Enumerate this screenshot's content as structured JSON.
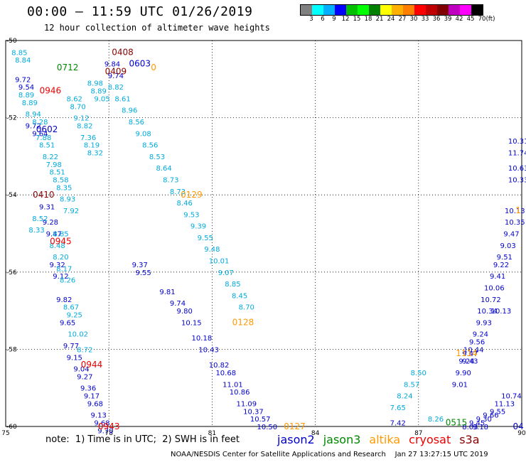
{
  "header": {
    "title": "00:00 – 11:59 UTC 01/26/2019",
    "subtitle": "12 hour collection of altimeter wave heights"
  },
  "color_scale": {
    "colors": [
      "#808080",
      "#00ffff",
      "#00b0ff",
      "#0000ff",
      "#00c000",
      "#00ff00",
      "#008000",
      "#ffff00",
      "#ffb000",
      "#ff8000",
      "#ff0000",
      "#c00000",
      "#800000",
      "#c000c0",
      "#ff00ff",
      "#000000"
    ],
    "labels": [
      "3",
      "6",
      "9",
      "12",
      "15",
      "18",
      "21",
      "24",
      "27",
      "30",
      "33",
      "36",
      "39",
      "42",
      "45",
      "70",
      "(ft)"
    ]
  },
  "footer": {
    "note": "note:  1) Time is in UTC;  2) SWH is in feet",
    "credit": "NOAA/NESDIS Center for Satellite Applications and Research    Jan 27 13:27:15 UTC 2019",
    "satellites": [
      {
        "name": "jason2",
        "color": "#0000cc"
      },
      {
        "name": "jason3",
        "color": "#008800"
      },
      {
        "name": "altika",
        "color": "#ff9900"
      },
      {
        "name": "cryosat",
        "color": "#ee0000"
      },
      {
        "name": "s3a",
        "color": "#880000"
      }
    ]
  },
  "chart_data": {
    "type": "scatter",
    "title": "00:00 – 11:59 UTC 01/26/2019",
    "subtitle": "12 hour collection of altimeter wave heights",
    "xlabel": "",
    "ylabel": "",
    "xlim": [
      75,
      90
    ],
    "ylim": [
      -60,
      -50
    ],
    "grid": true,
    "x_ticks": [
      "75",
      "78",
      "81",
      "84",
      "87",
      "90"
    ],
    "y_ticks": [
      "-50",
      "-52",
      "-54",
      "-56",
      "-58",
      "-60"
    ],
    "series": [
      {
        "name": "jason2",
        "color": "#0000cc",
        "points": [
          [
            78.9,
            -55.8,
            "9.37"
          ],
          [
            79.0,
            -56.0,
            "9.55"
          ],
          [
            79.7,
            -56.5,
            "9.81"
          ],
          [
            80.0,
            -56.8,
            "9.74"
          ],
          [
            80.2,
            -57.0,
            "9.80"
          ],
          [
            80.4,
            -57.3,
            "10.15"
          ],
          [
            80.7,
            -57.7,
            "10.18"
          ],
          [
            80.9,
            -58.0,
            "10.43"
          ],
          [
            81.2,
            -58.4,
            "10.82"
          ],
          [
            81.4,
            -58.6,
            "10.68"
          ],
          [
            81.6,
            -58.9,
            "11.01"
          ],
          [
            81.8,
            -59.1,
            "10.86"
          ],
          [
            82.0,
            -59.4,
            "11.09"
          ],
          [
            82.2,
            -59.6,
            "10.37"
          ],
          [
            82.4,
            -59.8,
            "10.57"
          ],
          [
            82.6,
            -60.0,
            "10.50"
          ],
          [
            75.5,
            -51.0,
            "9.72"
          ],
          [
            75.6,
            -51.2,
            "9.54"
          ],
          [
            75.8,
            -52.2,
            "9.72"
          ],
          [
            76.0,
            -52.4,
            "9.64"
          ],
          [
            76.2,
            -54.3,
            "9.31"
          ],
          [
            76.3,
            -54.7,
            "9.28"
          ],
          [
            76.4,
            -55.0,
            "9.47"
          ],
          [
            76.5,
            -55.8,
            "9.32"
          ],
          [
            76.6,
            -56.1,
            "9.12"
          ],
          [
            76.7,
            -56.7,
            "9.82"
          ],
          [
            76.8,
            -57.3,
            "9.65"
          ],
          [
            76.9,
            -57.9,
            "9.77"
          ],
          [
            77.0,
            -58.2,
            "9.15"
          ],
          [
            77.2,
            -58.5,
            "9.04"
          ],
          [
            77.3,
            -58.7,
            "9.27"
          ],
          [
            77.4,
            -59.0,
            "9.36"
          ],
          [
            77.5,
            -59.2,
            "9.17"
          ],
          [
            77.6,
            -59.4,
            "9.68"
          ],
          [
            77.7,
            -59.7,
            "9.13"
          ],
          [
            77.8,
            -59.9,
            "9.68"
          ],
          [
            77.9,
            -60.1,
            "9.70"
          ],
          [
            78.1,
            -50.6,
            "9.84"
          ],
          [
            78.2,
            -50.9,
            "9.74"
          ],
          [
            86.4,
            -59.9,
            "7.42"
          ],
          [
            88.8,
            -60.0,
            "9.18"
          ],
          [
            89.4,
            -57.0,
            "10.13"
          ],
          [
            88.5,
            -58.1,
            "9.47"
          ],
          [
            88.4,
            -58.3,
            "9.24"
          ],
          [
            88.3,
            -58.6,
            "9.90"
          ],
          [
            88.2,
            -58.9,
            "9.01"
          ],
          [
            89.8,
            -54.4,
            "10.13"
          ],
          [
            89.8,
            -54.7,
            "10.35"
          ],
          [
            89.7,
            -55.0,
            "9.47"
          ],
          [
            89.6,
            -55.3,
            "9.03"
          ],
          [
            89.5,
            -55.6,
            "9.51"
          ],
          [
            89.4,
            -55.8,
            "9.22"
          ],
          [
            89.3,
            -56.1,
            "9.41"
          ],
          [
            89.2,
            -56.4,
            "10.06"
          ],
          [
            89.1,
            -56.7,
            "10.72"
          ],
          [
            89.0,
            -57.0,
            "10.34"
          ],
          [
            88.9,
            -57.3,
            "9.93"
          ],
          [
            88.8,
            -57.6,
            "9.24"
          ],
          [
            88.7,
            -57.8,
            "9.56"
          ],
          [
            88.6,
            -58.0,
            "10.44"
          ],
          [
            88.5,
            -58.3,
            "9.43"
          ],
          [
            89.9,
            -53.3,
            "10.63"
          ],
          [
            89.9,
            -53.6,
            "10.33"
          ],
          [
            89.9,
            -52.9,
            "11.74"
          ],
          [
            89.9,
            -52.6,
            "10.31"
          ],
          [
            89.7,
            -59.2,
            "10.74"
          ],
          [
            89.5,
            -59.4,
            "11.13"
          ],
          [
            89.3,
            -59.6,
            "9.55"
          ],
          [
            89.1,
            -59.7,
            "9.66"
          ],
          [
            88.9,
            -59.8,
            "9.30"
          ],
          [
            88.7,
            -59.9,
            "9.45"
          ],
          [
            88.5,
            -60.0,
            "8.03"
          ]
        ]
      },
      {
        "name": "jason2-tracks-b",
        "color": "#00aadd",
        "points": [
          [
            75.4,
            -50.3,
            "8.85"
          ],
          [
            75.5,
            -50.5,
            "8.84"
          ],
          [
            75.6,
            -51.4,
            "8.89"
          ],
          [
            75.7,
            -51.6,
            "8.89"
          ],
          [
            75.8,
            -51.9,
            "8.94"
          ],
          [
            76.0,
            -52.1,
            "8.28"
          ],
          [
            76.1,
            -52.5,
            "7.88"
          ],
          [
            76.2,
            -52.7,
            "8.51"
          ],
          [
            76.3,
            -53.0,
            "8.22"
          ],
          [
            76.4,
            -53.2,
            "7.98"
          ],
          [
            76.5,
            -53.4,
            "8.51"
          ],
          [
            76.6,
            -53.6,
            "8.58"
          ],
          [
            76.7,
            -53.8,
            "8.35"
          ],
          [
            76.8,
            -54.1,
            "8.93"
          ],
          [
            76.9,
            -54.4,
            "7.92"
          ],
          [
            76.0,
            -54.6,
            "8.52"
          ],
          [
            75.9,
            -54.9,
            "8.33"
          ],
          [
            76.6,
            -55.0,
            "8.85"
          ],
          [
            76.5,
            -55.3,
            "8.48"
          ],
          [
            76.6,
            -55.6,
            "8.20"
          ],
          [
            76.7,
            -55.9,
            "8.17"
          ],
          [
            76.8,
            -56.2,
            "8.26"
          ],
          [
            76.9,
            -56.9,
            "8.67"
          ],
          [
            77.0,
            -57.1,
            "9.25"
          ],
          [
            77.1,
            -57.6,
            "10.02"
          ],
          [
            77.3,
            -58.0,
            "8.72"
          ],
          [
            77.0,
            -51.5,
            "8.62"
          ],
          [
            77.1,
            -51.7,
            "8.70"
          ],
          [
            77.2,
            -52.0,
            "9.12"
          ],
          [
            77.3,
            -52.2,
            "8.82"
          ],
          [
            77.4,
            -52.5,
            "7.36"
          ],
          [
            77.5,
            -52.7,
            "8.19"
          ],
          [
            77.6,
            -52.9,
            "8.32"
          ],
          [
            77.6,
            -51.1,
            "8.98"
          ],
          [
            77.7,
            -51.3,
            "8.89"
          ],
          [
            77.8,
            -51.5,
            "9.05"
          ],
          [
            78.2,
            -51.2,
            "8.82"
          ],
          [
            78.4,
            -51.5,
            "8.61"
          ],
          [
            78.6,
            -51.8,
            "8.96"
          ],
          [
            78.8,
            -52.1,
            "8.56"
          ],
          [
            79.0,
            -52.4,
            "9.08"
          ],
          [
            79.2,
            -52.7,
            "8.56"
          ],
          [
            79.4,
            -53.0,
            "8.53"
          ],
          [
            79.6,
            -53.3,
            "8.64"
          ],
          [
            79.8,
            -53.6,
            "8.73"
          ],
          [
            80.0,
            -53.9,
            "8.73"
          ],
          [
            80.2,
            -54.2,
            "8.46"
          ],
          [
            80.4,
            -54.5,
            "9.53"
          ],
          [
            80.6,
            -54.8,
            "9.39"
          ],
          [
            80.8,
            -55.1,
            "9.55"
          ],
          [
            81.0,
            -55.4,
            "9.48"
          ],
          [
            81.2,
            -55.7,
            "10.01"
          ],
          [
            81.4,
            -56.0,
            "9.07"
          ],
          [
            81.6,
            -56.3,
            "8.85"
          ],
          [
            81.8,
            -56.6,
            "8.45"
          ],
          [
            82.0,
            -56.9,
            "8.70"
          ],
          [
            86.4,
            -59.5,
            "7.65"
          ],
          [
            86.6,
            -59.2,
            "8.24"
          ],
          [
            86.8,
            -58.9,
            "8.57"
          ],
          [
            87.0,
            -58.6,
            "8.50"
          ],
          [
            87.5,
            -59.8,
            "8.26"
          ]
        ]
      },
      {
        "name": "jason3",
        "color": "#008800",
        "points": [
          [
            76.8,
            -50.7,
            "0712"
          ],
          [
            88.1,
            -59.9,
            "0515"
          ]
        ]
      },
      {
        "name": "altika",
        "color": "#ff9900",
        "points": [
          [
            80.4,
            -54.0,
            "0129"
          ],
          [
            81.9,
            -57.3,
            "0128"
          ],
          [
            83.4,
            -60.0,
            "0127"
          ],
          [
            88.4,
            -58.1,
            "1114"
          ],
          [
            89.9,
            -54.4,
            "1"
          ],
          [
            79.3,
            -50.7,
            "0"
          ]
        ]
      },
      {
        "name": "cryosat",
        "color": "#ee0000",
        "points": [
          [
            76.3,
            -51.3,
            "0946"
          ],
          [
            76.6,
            -55.2,
            "0945"
          ],
          [
            77.5,
            -58.4,
            "0944"
          ],
          [
            78.0,
            -60.0,
            "0943"
          ]
        ]
      },
      {
        "name": "s3a",
        "color": "#880000",
        "points": [
          [
            78.4,
            -50.3,
            "0408"
          ],
          [
            78.2,
            -50.8,
            "0409"
          ],
          [
            76.1,
            -54.0,
            "0410"
          ]
        ]
      },
      {
        "name": "jason2-times",
        "color": "#0000cc",
        "points": [
          [
            76.2,
            -52.3,
            "0602"
          ],
          [
            78.9,
            -50.6,
            "0603"
          ],
          [
            89.9,
            -60.0,
            "04"
          ]
        ]
      }
    ]
  }
}
